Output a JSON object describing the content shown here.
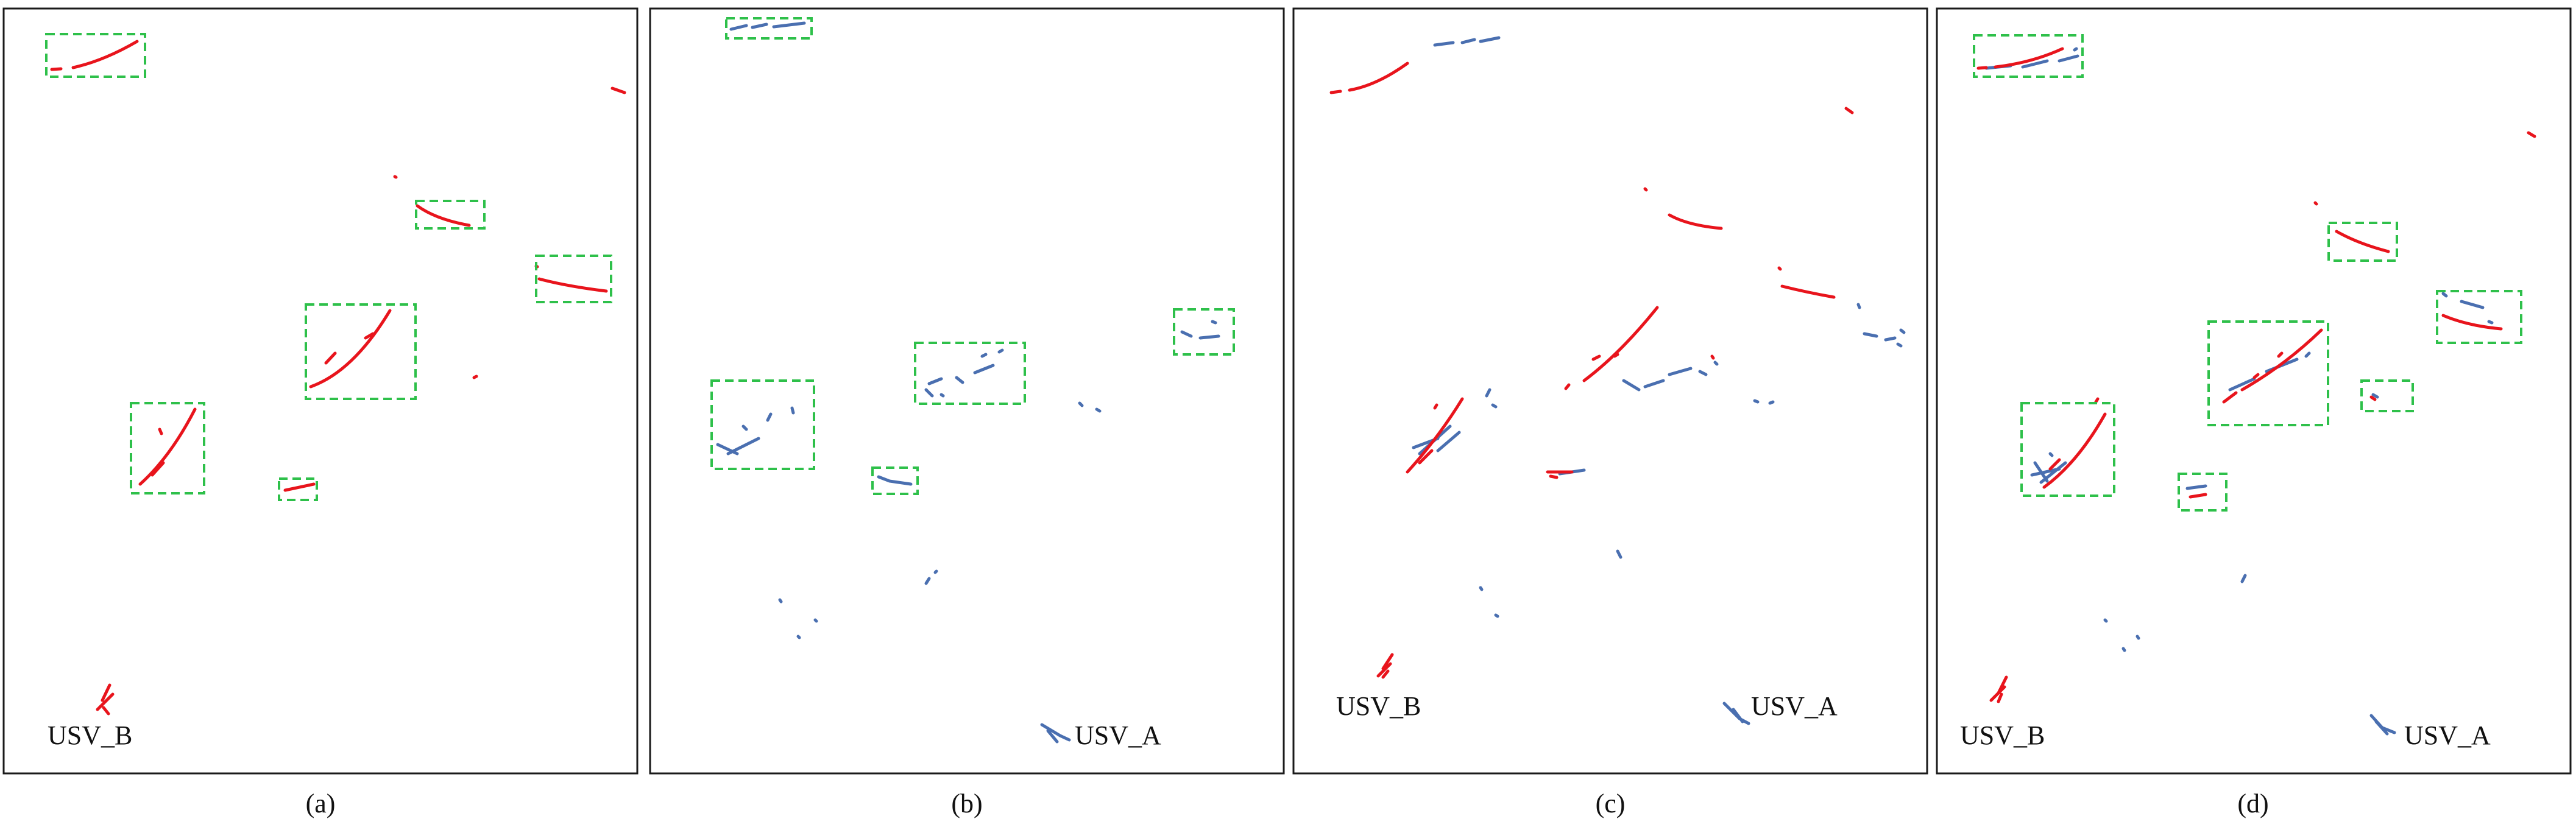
{
  "colors": {
    "usv_b": "#e8141c",
    "usv_a": "#4a6fb0",
    "box": "#2ec04a",
    "frame": "#1a1a1a"
  },
  "panels": [
    {
      "id": "a",
      "caption": "(a)",
      "labels": [
        {
          "text": "USV_B",
          "color_key": "usv_b",
          "icon": "usv-b-marker"
        }
      ]
    },
    {
      "id": "b",
      "caption": "(b)",
      "labels": [
        {
          "text": "USV_A",
          "color_key": "usv_a",
          "icon": "usv-a-marker"
        }
      ]
    },
    {
      "id": "c",
      "caption": "(c)",
      "labels": [
        {
          "text": "USV_B",
          "color_key": "usv_b",
          "icon": "usv-b-marker"
        },
        {
          "text": "USV_A",
          "color_key": "usv_a",
          "icon": "usv-a-marker"
        }
      ]
    },
    {
      "id": "d",
      "caption": "(d)",
      "labels": [
        {
          "text": "USV_B",
          "color_key": "usv_b",
          "icon": "usv-b-marker"
        },
        {
          "text": "USV_A",
          "color_key": "usv_a",
          "icon": "usv-a-marker"
        }
      ]
    }
  ]
}
